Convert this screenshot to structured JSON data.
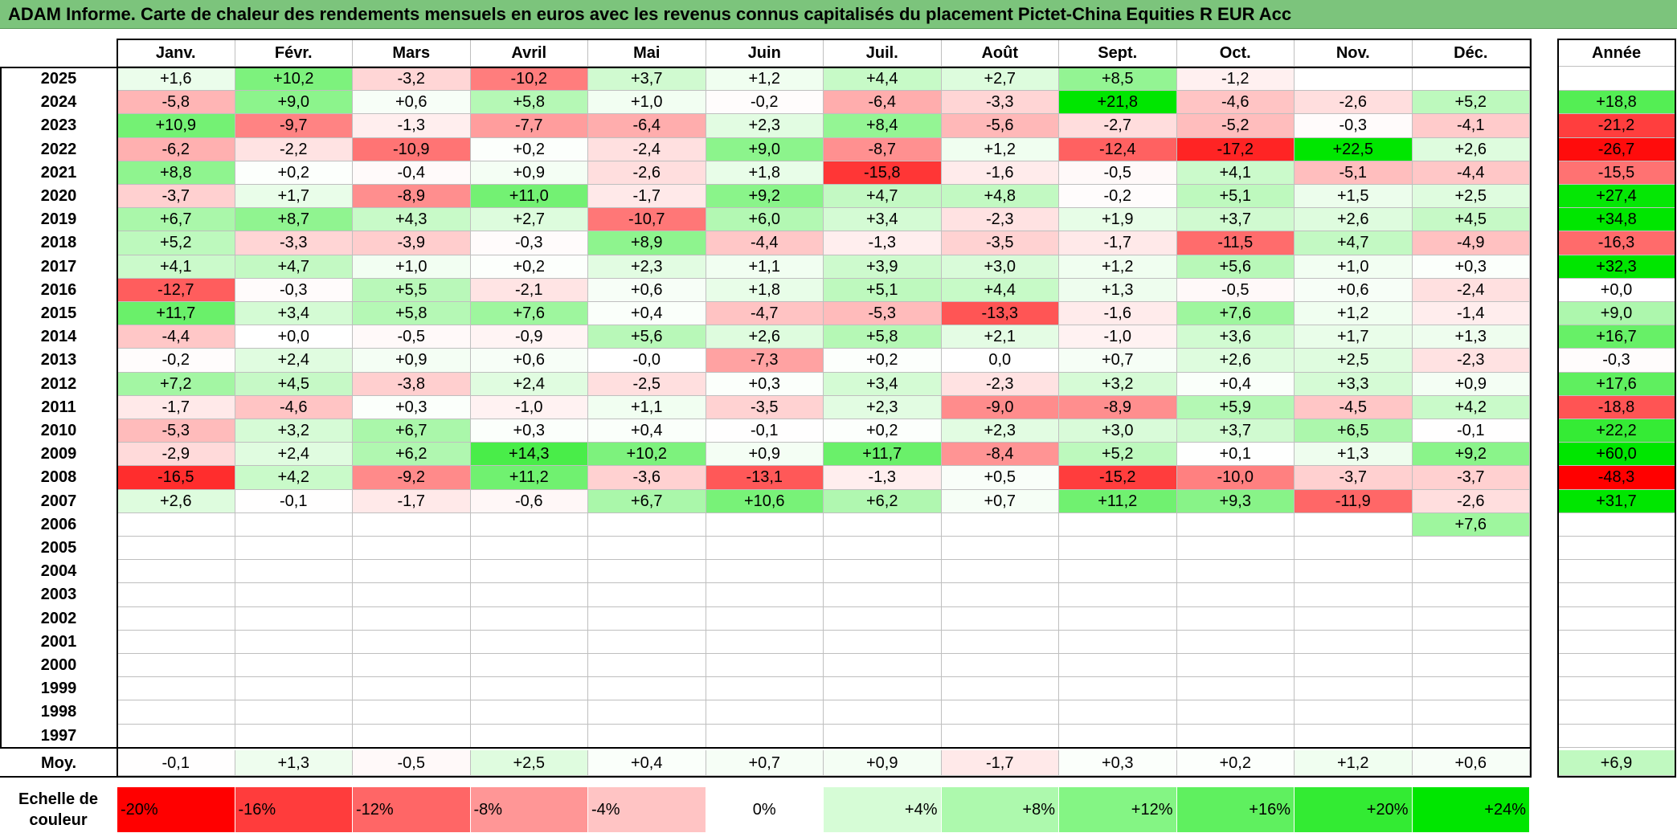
{
  "title": "ADAM Informe. Carte de chaleur des rendements mensuels en euros avec les revenus connus capitalisés du placement Pictet-China Equities R EUR Acc",
  "chart_data": {
    "type": "heatmap",
    "columns": [
      "Janv.",
      "Févr.",
      "Mars",
      "Avril",
      "Mai",
      "Juin",
      "Juil.",
      "Août",
      "Sept.",
      "Oct.",
      "Nov.",
      "Déc."
    ],
    "annual_header": "Année",
    "rows": [
      {
        "year": "2025",
        "months": [
          "+1,6",
          "+10,2",
          "-3,2",
          "-10,2",
          "+3,7",
          "+1,2",
          "+4,4",
          "+2,7",
          "+8,5",
          "-1,2",
          "",
          ""
        ],
        "annual": ""
      },
      {
        "year": "2024",
        "months": [
          "-5,8",
          "+9,0",
          "+0,6",
          "+5,8",
          "+1,0",
          "-0,2",
          "-6,4",
          "-3,3",
          "+21,8",
          "-4,6",
          "-2,6",
          "+5,2"
        ],
        "annual": "+18,8"
      },
      {
        "year": "2023",
        "months": [
          "+10,9",
          "-9,7",
          "-1,3",
          "-7,7",
          "-6,4",
          "+2,3",
          "+8,4",
          "-5,6",
          "-2,7",
          "-5,2",
          "-0,3",
          "-4,1"
        ],
        "annual": "-21,2"
      },
      {
        "year": "2022",
        "months": [
          "-6,2",
          "-2,2",
          "-10,9",
          "+0,2",
          "-2,4",
          "+9,0",
          "-8,7",
          "+1,2",
          "-12,4",
          "-17,2",
          "+22,5",
          "+2,6"
        ],
        "annual": "-26,7"
      },
      {
        "year": "2021",
        "months": [
          "+8,8",
          "+0,2",
          "-0,4",
          "+0,9",
          "-2,6",
          "+1,8",
          "-15,8",
          "-1,6",
          "-0,5",
          "+4,1",
          "-5,1",
          "-4,4"
        ],
        "annual": "-15,5"
      },
      {
        "year": "2020",
        "months": [
          "-3,7",
          "+1,7",
          "-8,9",
          "+11,0",
          "-1,7",
          "+9,2",
          "+4,7",
          "+4,8",
          "-0,2",
          "+5,1",
          "+1,5",
          "+2,5"
        ],
        "annual": "+27,4"
      },
      {
        "year": "2019",
        "months": [
          "+6,7",
          "+8,7",
          "+4,3",
          "+2,7",
          "-10,7",
          "+6,0",
          "+3,4",
          "-2,3",
          "+1,9",
          "+3,7",
          "+2,6",
          "+4,5"
        ],
        "annual": "+34,8"
      },
      {
        "year": "2018",
        "months": [
          "+5,2",
          "-3,3",
          "-3,9",
          "-0,3",
          "+8,9",
          "-4,4",
          "-1,3",
          "-3,5",
          "-1,7",
          "-11,5",
          "+4,7",
          "-4,9"
        ],
        "annual": "-16,3"
      },
      {
        "year": "2017",
        "months": [
          "+4,1",
          "+4,7",
          "+1,0",
          "+0,2",
          "+2,3",
          "+1,1",
          "+3,9",
          "+3,0",
          "+1,2",
          "+5,6",
          "+1,0",
          "+0,3"
        ],
        "annual": "+32,3"
      },
      {
        "year": "2016",
        "months": [
          "-12,7",
          "-0,3",
          "+5,5",
          "-2,1",
          "+0,6",
          "+1,8",
          "+5,1",
          "+4,4",
          "+1,3",
          "-0,5",
          "+0,6",
          "-2,4"
        ],
        "annual": "+0,0"
      },
      {
        "year": "2015",
        "months": [
          "+11,7",
          "+3,4",
          "+5,8",
          "+7,6",
          "+0,4",
          "-4,7",
          "-5,3",
          "-13,3",
          "-1,6",
          "+7,6",
          "+1,2",
          "-1,4"
        ],
        "annual": "+9,0"
      },
      {
        "year": "2014",
        "months": [
          "-4,4",
          "+0,0",
          "-0,5",
          "-0,9",
          "+5,6",
          "+2,6",
          "+5,8",
          "+2,1",
          "-1,0",
          "+3,6",
          "+1,7",
          "+1,3"
        ],
        "annual": "+16,7"
      },
      {
        "year": "2013",
        "months": [
          "-0,2",
          "+2,4",
          "+0,9",
          "+0,6",
          "-0,0",
          "-7,3",
          "+0,2",
          "0,0",
          "+0,7",
          "+2,6",
          "+2,5",
          "-2,3"
        ],
        "annual": "-0,3"
      },
      {
        "year": "2012",
        "months": [
          "+7,2",
          "+4,5",
          "-3,8",
          "+2,4",
          "-2,5",
          "+0,3",
          "+3,4",
          "-2,3",
          "+3,2",
          "+0,4",
          "+3,3",
          "+0,9"
        ],
        "annual": "+17,6"
      },
      {
        "year": "2011",
        "months": [
          "-1,7",
          "-4,6",
          "+0,3",
          "-1,0",
          "+1,1",
          "-3,5",
          "+2,3",
          "-9,0",
          "-8,9",
          "+5,9",
          "-4,5",
          "+4,2"
        ],
        "annual": "-18,8"
      },
      {
        "year": "2010",
        "months": [
          "-5,3",
          "+3,2",
          "+6,7",
          "+0,3",
          "+0,4",
          "-0,1",
          "+0,2",
          "+2,3",
          "+3,0",
          "+3,7",
          "+6,5",
          "-0,1"
        ],
        "annual": "+22,2"
      },
      {
        "year": "2009",
        "months": [
          "-2,9",
          "+2,4",
          "+6,2",
          "+14,3",
          "+10,2",
          "+0,9",
          "+11,7",
          "-8,4",
          "+5,2",
          "+0,1",
          "+1,3",
          "+9,2"
        ],
        "annual": "+60,0"
      },
      {
        "year": "2008",
        "months": [
          "-16,5",
          "+4,2",
          "-9,2",
          "+11,2",
          "-3,6",
          "-13,1",
          "-1,3",
          "+0,5",
          "-15,2",
          "-10,0",
          "-3,7",
          "-3,7"
        ],
        "annual": "-48,3"
      },
      {
        "year": "2007",
        "months": [
          "+2,6",
          "-0,1",
          "-1,7",
          "-0,6",
          "+6,7",
          "+10,6",
          "+6,2",
          "+0,7",
          "+11,2",
          "+9,3",
          "-11,9",
          "-2,6"
        ],
        "annual": "+31,7"
      },
      {
        "year": "2006",
        "months": [
          "",
          "",
          "",
          "",
          "",
          "",
          "",
          "",
          "",
          "",
          "",
          "+7,6"
        ],
        "annual": ""
      },
      {
        "year": "2005",
        "months": [
          "",
          "",
          "",
          "",
          "",
          "",
          "",
          "",
          "",
          "",
          "",
          ""
        ],
        "annual": ""
      },
      {
        "year": "2004",
        "months": [
          "",
          "",
          "",
          "",
          "",
          "",
          "",
          "",
          "",
          "",
          "",
          ""
        ],
        "annual": ""
      },
      {
        "year": "2003",
        "months": [
          "",
          "",
          "",
          "",
          "",
          "",
          "",
          "",
          "",
          "",
          "",
          ""
        ],
        "annual": ""
      },
      {
        "year": "2002",
        "months": [
          "",
          "",
          "",
          "",
          "",
          "",
          "",
          "",
          "",
          "",
          "",
          ""
        ],
        "annual": ""
      },
      {
        "year": "2001",
        "months": [
          "",
          "",
          "",
          "",
          "",
          "",
          "",
          "",
          "",
          "",
          "",
          ""
        ],
        "annual": ""
      },
      {
        "year": "2000",
        "months": [
          "",
          "",
          "",
          "",
          "",
          "",
          "",
          "",
          "",
          "",
          "",
          ""
        ],
        "annual": ""
      },
      {
        "year": "1999",
        "months": [
          "",
          "",
          "",
          "",
          "",
          "",
          "",
          "",
          "",
          "",
          "",
          ""
        ],
        "annual": ""
      },
      {
        "year": "1998",
        "months": [
          "",
          "",
          "",
          "",
          "",
          "",
          "",
          "",
          "",
          "",
          "",
          ""
        ],
        "annual": ""
      },
      {
        "year": "1997",
        "months": [
          "",
          "",
          "",
          "",
          "",
          "",
          "",
          "",
          "",
          "",
          "",
          ""
        ],
        "annual": ""
      }
    ],
    "average_label": "Moy.",
    "average_row": [
      "-0,1",
      "+1,3",
      "-0,5",
      "+2,5",
      "+0,4",
      "+0,7",
      "+0,9",
      "-1,7",
      "+0,3",
      "+0,2",
      "+1,2",
      "+0,6"
    ],
    "average_annual": "+6,9",
    "legend_label": "Echelle de couleur",
    "legend_scale": [
      "-20%",
      "-16%",
      "-12%",
      "-8%",
      "-4%",
      "0%",
      "+4%",
      "+8%",
      "+12%",
      "+16%",
      "+20%",
      "+24%"
    ],
    "legend_colors": [
      "#ff0000",
      "#ff3c3c",
      "#ff6666",
      "#ff9696",
      "#ffc4c4",
      "#ffffff",
      "#d6fcd6",
      "#adf9ad",
      "#84f584",
      "#5ff05f",
      "#33eb33",
      "#00e600"
    ],
    "colors": {
      "negative_max": "#ff0000",
      "neutral": "#ffffff",
      "positive_max": "#00e600",
      "title_bg": "#7cc47c"
    }
  }
}
